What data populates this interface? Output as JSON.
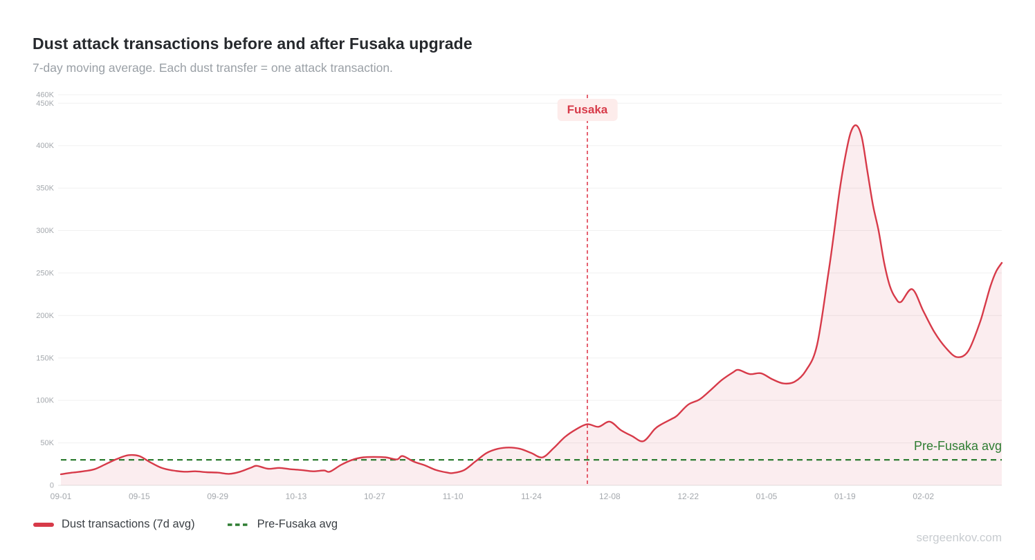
{
  "header": {
    "title": "Dust attack transactions before and after Fusaka upgrade",
    "subtitle": "7-day moving average. Each dust transfer = one attack transaction."
  },
  "watermark": "sergeenkov.com",
  "colors": {
    "line": "#d73a49",
    "fill": "rgba(215,58,73,0.09)",
    "event_line": "#e03b4d",
    "event_label_bg": "#fdeceb",
    "avg_line": "#2e7d32",
    "grid": "#f0f0f0",
    "baseline": "#e2e2e2",
    "axis_text": "#a4a8ad",
    "title_text": "#26292d",
    "subtitle_text": "#9aa0a6",
    "legend_text": "#3a3f44",
    "watermark_text": "#c8ccd0"
  },
  "chart_data": {
    "type": "area",
    "title": "Dust attack transactions before and after Fusaka upgrade",
    "subtitle": "7-day moving average. Each dust transfer = one attack transaction.",
    "xlabel": "",
    "ylabel": "",
    "ylim": [
      0,
      460000
    ],
    "grid": "horizontal",
    "legend_position": "bottom-left",
    "y_tick_values": [
      0,
      50000,
      100000,
      150000,
      200000,
      250000,
      300000,
      350000,
      400000,
      450000,
      460000
    ],
    "y_tick_labels": [
      "0",
      "50K",
      "100K",
      "150K",
      "200K",
      "250K",
      "300K",
      "350K",
      "400K",
      "450K",
      "460K"
    ],
    "x_ticks": [
      "09-01",
      "09-15",
      "09-29",
      "10-13",
      "10-27",
      "11-10",
      "11-24",
      "12-08",
      "12-22",
      "01-05",
      "01-19",
      "02-02"
    ],
    "x": [
      "09-01",
      "09-03",
      "09-05",
      "09-07",
      "09-09",
      "09-11",
      "09-13",
      "09-15",
      "09-17",
      "09-19",
      "09-21",
      "09-23",
      "09-25",
      "09-27",
      "09-29",
      "10-01",
      "10-03",
      "10-05",
      "10-06",
      "10-08",
      "10-10",
      "10-12",
      "10-14",
      "10-16",
      "10-18",
      "10-19",
      "10-21",
      "10-23",
      "10-25",
      "10-27",
      "10-29",
      "10-31",
      "11-01",
      "11-03",
      "11-05",
      "11-07",
      "11-09",
      "11-10",
      "11-12",
      "11-14",
      "11-16",
      "11-18",
      "11-20",
      "11-22",
      "11-24",
      "11-26",
      "11-28",
      "11-30",
      "12-02",
      "12-04",
      "12-06",
      "12-08",
      "12-10",
      "12-12",
      "12-14",
      "12-16",
      "12-17",
      "12-19",
      "12-20",
      "12-22",
      "12-24",
      "12-26",
      "12-28",
      "12-30",
      "12-31",
      "01-02",
      "01-04",
      "01-06",
      "01-08",
      "01-10",
      "01-12",
      "01-14",
      "01-16",
      "01-17",
      "01-18",
      "01-19",
      "01-20",
      "01-21",
      "01-22",
      "01-23",
      "01-24",
      "01-25",
      "01-26",
      "01-27",
      "01-28",
      "01-29",
      "01-31",
      "02-02",
      "02-04",
      "02-06",
      "02-08",
      "02-10",
      "02-12",
      "02-13",
      "02-14",
      "02-15",
      "02-16"
    ],
    "series": [
      {
        "name": "Dust transactions (7d avg)",
        "color": "#d73a49",
        "values": [
          13000,
          15000,
          16500,
          19000,
          25000,
          31000,
          35500,
          34500,
          27000,
          20500,
          17500,
          16000,
          16500,
          15500,
          15000,
          13500,
          16000,
          21000,
          23000,
          19500,
          20500,
          19000,
          18000,
          16500,
          17500,
          16000,
          24000,
          30000,
          33000,
          33500,
          33000,
          30500,
          34500,
          28000,
          23500,
          18000,
          15000,
          14500,
          18000,
          28000,
          38000,
          43000,
          44500,
          43000,
          38000,
          33000,
          44000,
          57000,
          66000,
          72000,
          69000,
          75000,
          65000,
          58000,
          52000,
          66000,
          71000,
          78000,
          82000,
          95000,
          101000,
          112000,
          124000,
          133000,
          136000,
          131000,
          132000,
          125000,
          120000,
          122000,
          135000,
          165000,
          248000,
          295000,
          345000,
          385000,
          415000,
          424000,
          410000,
          370000,
          330000,
          300000,
          262000,
          235000,
          221000,
          216000,
          231000,
          205000,
          180000,
          162000,
          151000,
          158000,
          190000,
          212000,
          235000,
          252000,
          262000
        ]
      }
    ],
    "annotations": {
      "fusaka_event": {
        "label": "Fusaka",
        "date": "12-04",
        "style": "vertical-dashed-red"
      },
      "pre_fusaka_avg": {
        "label": "Pre-Fusaka avg",
        "value": 30000,
        "style": "horizontal-dashed-green"
      }
    }
  },
  "legend": {
    "items": [
      {
        "label": "Dust transactions (7d avg)",
        "swatch": "solid-line",
        "color": "#d73a49"
      },
      {
        "label": "Pre-Fusaka avg",
        "swatch": "dashed-line",
        "color": "#2e7d32"
      }
    ]
  }
}
